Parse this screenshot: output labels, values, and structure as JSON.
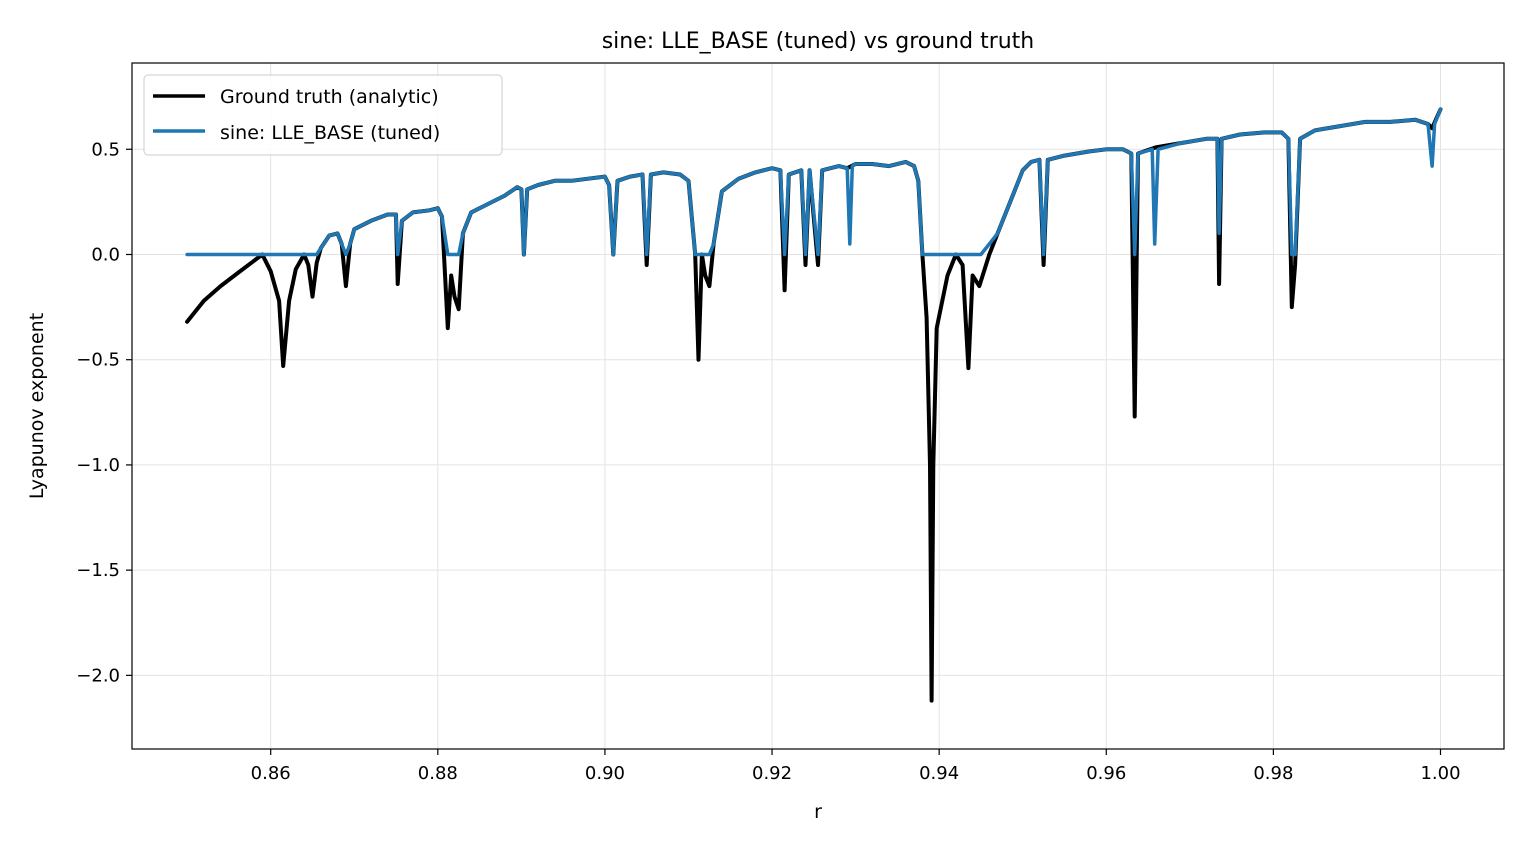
{
  "chart_data": {
    "type": "line",
    "title": "sine: LLE_BASE (tuned) vs ground truth",
    "xlabel": "r",
    "ylabel": "Lyapunov exponent",
    "xlim": [
      0.8434,
      1.0076
    ],
    "ylim": [
      -2.35,
      0.91
    ],
    "xticks": [
      0.86,
      0.88,
      0.9,
      0.92,
      0.94,
      0.96,
      0.98,
      1.0
    ],
    "xtick_labels": [
      "0.86",
      "0.88",
      "0.90",
      "0.92",
      "0.94",
      "0.96",
      "0.98",
      "1.00"
    ],
    "yticks": [
      0.5,
      0.0,
      -0.5,
      -1.0,
      -1.5,
      -2.0
    ],
    "ytick_labels": [
      "0.5",
      "0.0",
      "−0.5",
      "−1.0",
      "−1.5",
      "−2.0"
    ],
    "grid": true,
    "legend_position": "top-left",
    "series": [
      {
        "name": "Ground truth (analytic)",
        "color": "#000000",
        "points": [
          [
            0.85,
            -0.32
          ],
          [
            0.852,
            -0.22
          ],
          [
            0.854,
            -0.15
          ],
          [
            0.856,
            -0.09
          ],
          [
            0.858,
            -0.03
          ],
          [
            0.859,
            0.0
          ],
          [
            0.86,
            -0.08
          ],
          [
            0.861,
            -0.22
          ],
          [
            0.8615,
            -0.53
          ],
          [
            0.8622,
            -0.22
          ],
          [
            0.863,
            -0.07
          ],
          [
            0.864,
            0.0
          ],
          [
            0.8645,
            -0.05
          ],
          [
            0.865,
            -0.2
          ],
          [
            0.8655,
            -0.04
          ],
          [
            0.866,
            0.03
          ],
          [
            0.867,
            0.09
          ],
          [
            0.868,
            0.1
          ],
          [
            0.8685,
            0.05
          ],
          [
            0.869,
            -0.15
          ],
          [
            0.8695,
            0.05
          ],
          [
            0.87,
            0.12
          ],
          [
            0.872,
            0.16
          ],
          [
            0.874,
            0.19
          ],
          [
            0.875,
            0.19
          ],
          [
            0.8752,
            -0.14
          ],
          [
            0.8757,
            0.16
          ],
          [
            0.877,
            0.2
          ],
          [
            0.879,
            0.21
          ],
          [
            0.88,
            0.22
          ],
          [
            0.8805,
            0.18
          ],
          [
            0.8812,
            -0.35
          ],
          [
            0.8816,
            -0.1
          ],
          [
            0.882,
            -0.2
          ],
          [
            0.8825,
            -0.26
          ],
          [
            0.883,
            0.1
          ],
          [
            0.884,
            0.2
          ],
          [
            0.886,
            0.24
          ],
          [
            0.888,
            0.28
          ],
          [
            0.8895,
            0.32
          ],
          [
            0.89,
            0.31
          ],
          [
            0.8903,
            0.0
          ],
          [
            0.8907,
            0.31
          ],
          [
            0.892,
            0.33
          ],
          [
            0.894,
            0.35
          ],
          [
            0.896,
            0.35
          ],
          [
            0.898,
            0.36
          ],
          [
            0.9,
            0.37
          ],
          [
            0.9005,
            0.33
          ],
          [
            0.901,
            0.0
          ],
          [
            0.9015,
            0.35
          ],
          [
            0.903,
            0.37
          ],
          [
            0.9045,
            0.38
          ],
          [
            0.905,
            -0.05
          ],
          [
            0.9055,
            0.38
          ],
          [
            0.907,
            0.39
          ],
          [
            0.909,
            0.38
          ],
          [
            0.91,
            0.35
          ],
          [
            0.9108,
            0.0
          ],
          [
            0.9112,
            -0.5
          ],
          [
            0.9116,
            0.0
          ],
          [
            0.912,
            -0.1
          ],
          [
            0.9125,
            -0.15
          ],
          [
            0.913,
            0.05
          ],
          [
            0.914,
            0.3
          ],
          [
            0.916,
            0.36
          ],
          [
            0.918,
            0.39
          ],
          [
            0.92,
            0.41
          ],
          [
            0.921,
            0.4
          ],
          [
            0.9215,
            -0.17
          ],
          [
            0.922,
            0.38
          ],
          [
            0.9235,
            0.4
          ],
          [
            0.924,
            -0.05
          ],
          [
            0.9245,
            0.4
          ],
          [
            0.9255,
            -0.05
          ],
          [
            0.926,
            0.4
          ],
          [
            0.928,
            0.42
          ],
          [
            0.929,
            0.41
          ],
          [
            0.93,
            0.43
          ],
          [
            0.932,
            0.43
          ],
          [
            0.934,
            0.42
          ],
          [
            0.936,
            0.44
          ],
          [
            0.937,
            0.42
          ],
          [
            0.9375,
            0.35
          ],
          [
            0.938,
            0.0
          ],
          [
            0.9385,
            -0.3
          ],
          [
            0.9389,
            -1.0
          ],
          [
            0.9391,
            -2.12
          ],
          [
            0.9393,
            -1.0
          ],
          [
            0.9397,
            -0.35
          ],
          [
            0.941,
            -0.1
          ],
          [
            0.942,
            0.0
          ],
          [
            0.9428,
            -0.05
          ],
          [
            0.9435,
            -0.54
          ],
          [
            0.944,
            -0.1
          ],
          [
            0.9448,
            -0.15
          ],
          [
            0.946,
            0.0
          ],
          [
            0.947,
            0.1
          ],
          [
            0.948,
            0.2
          ],
          [
            0.949,
            0.3
          ],
          [
            0.95,
            0.4
          ],
          [
            0.951,
            0.44
          ],
          [
            0.952,
            0.45
          ],
          [
            0.9525,
            -0.05
          ],
          [
            0.953,
            0.45
          ],
          [
            0.955,
            0.47
          ],
          [
            0.958,
            0.49
          ],
          [
            0.96,
            0.5
          ],
          [
            0.962,
            0.5
          ],
          [
            0.963,
            0.48
          ],
          [
            0.9634,
            -0.77
          ],
          [
            0.9638,
            0.48
          ],
          [
            0.966,
            0.51
          ],
          [
            0.969,
            0.53
          ],
          [
            0.972,
            0.55
          ],
          [
            0.9733,
            0.55
          ],
          [
            0.9735,
            -0.14
          ],
          [
            0.9738,
            0.55
          ],
          [
            0.976,
            0.57
          ],
          [
            0.979,
            0.58
          ],
          [
            0.981,
            0.58
          ],
          [
            0.9818,
            0.55
          ],
          [
            0.9822,
            -0.25
          ],
          [
            0.9826,
            -0.05
          ],
          [
            0.9832,
            0.55
          ],
          [
            0.985,
            0.59
          ],
          [
            0.988,
            0.61
          ],
          [
            0.991,
            0.63
          ],
          [
            0.994,
            0.63
          ],
          [
            0.997,
            0.64
          ],
          [
            0.9985,
            0.62
          ],
          [
            0.999,
            0.6
          ],
          [
            1.0,
            0.69
          ]
        ]
      },
      {
        "name": "sine: LLE_BASE (tuned)",
        "color": "#1f77b4",
        "points": [
          [
            0.85,
            0.0
          ],
          [
            0.8655,
            0.0
          ],
          [
            0.866,
            0.03
          ],
          [
            0.867,
            0.09
          ],
          [
            0.868,
            0.1
          ],
          [
            0.8685,
            0.05
          ],
          [
            0.869,
            0.0
          ],
          [
            0.8695,
            0.05
          ],
          [
            0.87,
            0.12
          ],
          [
            0.872,
            0.16
          ],
          [
            0.874,
            0.19
          ],
          [
            0.875,
            0.19
          ],
          [
            0.8752,
            0.0
          ],
          [
            0.8757,
            0.16
          ],
          [
            0.877,
            0.2
          ],
          [
            0.879,
            0.21
          ],
          [
            0.88,
            0.22
          ],
          [
            0.8805,
            0.18
          ],
          [
            0.8812,
            0.0
          ],
          [
            0.8825,
            0.0
          ],
          [
            0.883,
            0.1
          ],
          [
            0.884,
            0.2
          ],
          [
            0.886,
            0.24
          ],
          [
            0.888,
            0.28
          ],
          [
            0.8895,
            0.32
          ],
          [
            0.89,
            0.31
          ],
          [
            0.8903,
            0.0
          ],
          [
            0.8907,
            0.31
          ],
          [
            0.892,
            0.33
          ],
          [
            0.894,
            0.35
          ],
          [
            0.896,
            0.35
          ],
          [
            0.898,
            0.36
          ],
          [
            0.9,
            0.37
          ],
          [
            0.9005,
            0.33
          ],
          [
            0.901,
            0.0
          ],
          [
            0.9015,
            0.35
          ],
          [
            0.903,
            0.37
          ],
          [
            0.9045,
            0.38
          ],
          [
            0.905,
            0.0
          ],
          [
            0.9055,
            0.38
          ],
          [
            0.907,
            0.39
          ],
          [
            0.909,
            0.38
          ],
          [
            0.91,
            0.35
          ],
          [
            0.9108,
            0.0
          ],
          [
            0.9125,
            0.0
          ],
          [
            0.913,
            0.05
          ],
          [
            0.914,
            0.3
          ],
          [
            0.916,
            0.36
          ],
          [
            0.918,
            0.39
          ],
          [
            0.92,
            0.41
          ],
          [
            0.921,
            0.4
          ],
          [
            0.9215,
            0.0
          ],
          [
            0.922,
            0.38
          ],
          [
            0.9235,
            0.4
          ],
          [
            0.924,
            0.0
          ],
          [
            0.9245,
            0.4
          ],
          [
            0.9255,
            0.0
          ],
          [
            0.926,
            0.4
          ],
          [
            0.928,
            0.42
          ],
          [
            0.929,
            0.41
          ],
          [
            0.9293,
            0.05
          ],
          [
            0.9296,
            0.42
          ],
          [
            0.93,
            0.43
          ],
          [
            0.932,
            0.43
          ],
          [
            0.934,
            0.42
          ],
          [
            0.936,
            0.44
          ],
          [
            0.937,
            0.42
          ],
          [
            0.9375,
            0.35
          ],
          [
            0.938,
            0.0
          ],
          [
            0.945,
            0.0
          ],
          [
            0.946,
            0.05
          ],
          [
            0.947,
            0.1
          ],
          [
            0.948,
            0.2
          ],
          [
            0.949,
            0.3
          ],
          [
            0.95,
            0.4
          ],
          [
            0.951,
            0.44
          ],
          [
            0.952,
            0.45
          ],
          [
            0.9525,
            0.0
          ],
          [
            0.953,
            0.45
          ],
          [
            0.955,
            0.47
          ],
          [
            0.958,
            0.49
          ],
          [
            0.96,
            0.5
          ],
          [
            0.962,
            0.5
          ],
          [
            0.963,
            0.48
          ],
          [
            0.9634,
            0.0
          ],
          [
            0.9638,
            0.48
          ],
          [
            0.9655,
            0.5
          ],
          [
            0.9658,
            0.05
          ],
          [
            0.9662,
            0.5
          ],
          [
            0.969,
            0.53
          ],
          [
            0.972,
            0.55
          ],
          [
            0.9733,
            0.55
          ],
          [
            0.9735,
            0.1
          ],
          [
            0.9738,
            0.55
          ],
          [
            0.976,
            0.57
          ],
          [
            0.979,
            0.58
          ],
          [
            0.981,
            0.58
          ],
          [
            0.9818,
            0.55
          ],
          [
            0.9822,
            0.0
          ],
          [
            0.9826,
            0.0
          ],
          [
            0.9832,
            0.55
          ],
          [
            0.985,
            0.59
          ],
          [
            0.988,
            0.61
          ],
          [
            0.991,
            0.63
          ],
          [
            0.994,
            0.63
          ],
          [
            0.997,
            0.64
          ],
          [
            0.9985,
            0.62
          ],
          [
            0.999,
            0.42
          ],
          [
            0.9993,
            0.62
          ],
          [
            1.0,
            0.69
          ]
        ]
      }
    ]
  }
}
